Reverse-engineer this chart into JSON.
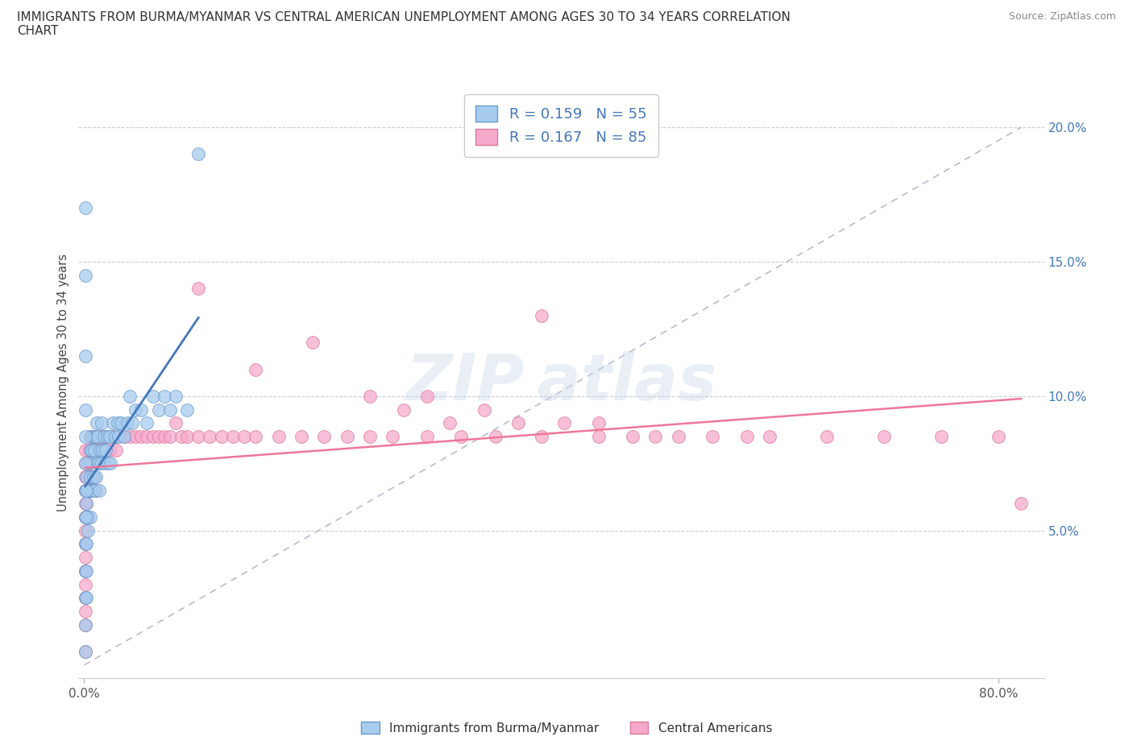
{
  "title": "IMMIGRANTS FROM BURMA/MYANMAR VS CENTRAL AMERICAN UNEMPLOYMENT AMONG AGES 30 TO 34 YEARS CORRELATION\nCHART",
  "source": "Source: ZipAtlas.com",
  "ylabel": "Unemployment Among Ages 30 to 34 years",
  "xlim": [
    -0.005,
    0.84
  ],
  "ylim": [
    -0.005,
    0.215
  ],
  "xtick_positions": [
    0.0,
    0.8
  ],
  "xticklabels": [
    "0.0%",
    "80.0%"
  ],
  "yticks_left": [],
  "yticks_right": [
    0.05,
    0.1,
    0.15,
    0.2
  ],
  "yticklabels_right": [
    "5.0%",
    "10.0%",
    "15.0%",
    "20.0%"
  ],
  "grid_yticks": [
    0.05,
    0.1,
    0.15,
    0.2
  ],
  "color_burma": "#A8CCEE",
  "color_burma_edge": "#6699CC",
  "color_central": "#F5AACC",
  "color_central_edge": "#DD7799",
  "color_trendline_burma": "#4477BB",
  "color_trendline_central": "#EE7799",
  "color_dashed_line": "#BBBBCC",
  "burma_x": [
    0.002,
    0.002,
    0.002,
    0.003,
    0.003,
    0.004,
    0.004,
    0.005,
    0.005,
    0.005,
    0.006,
    0.006,
    0.007,
    0.007,
    0.008,
    0.008,
    0.009,
    0.009,
    0.01,
    0.01,
    0.011,
    0.011,
    0.012,
    0.013,
    0.013,
    0.014,
    0.015,
    0.015,
    0.016,
    0.017,
    0.018,
    0.019,
    0.02,
    0.021,
    0.022,
    0.023,
    0.025,
    0.027,
    0.029,
    0.03,
    0.032,
    0.035,
    0.038,
    0.04,
    0.042,
    0.045,
    0.05,
    0.055,
    0.06,
    0.065,
    0.07,
    0.075,
    0.08,
    0.09,
    0.1
  ],
  "burma_y": [
    0.07,
    0.065,
    0.06,
    0.055,
    0.05,
    0.075,
    0.065,
    0.08,
    0.07,
    0.055,
    0.085,
    0.065,
    0.08,
    0.065,
    0.085,
    0.07,
    0.08,
    0.065,
    0.085,
    0.07,
    0.09,
    0.075,
    0.085,
    0.075,
    0.065,
    0.08,
    0.09,
    0.075,
    0.08,
    0.085,
    0.075,
    0.08,
    0.085,
    0.075,
    0.085,
    0.075,
    0.09,
    0.085,
    0.09,
    0.085,
    0.09,
    0.085,
    0.09,
    0.1,
    0.09,
    0.095,
    0.095,
    0.09,
    0.1,
    0.095,
    0.1,
    0.095,
    0.1,
    0.095,
    0.19
  ],
  "burma_y_extra": [
    0.17,
    0.145,
    0.115,
    0.095,
    0.085,
    0.075,
    0.065,
    0.055,
    0.045,
    0.035,
    0.025,
    0.015,
    0.005,
    0.065,
    0.055,
    0.045,
    0.035,
    0.025
  ],
  "burma_x_extra": [
    0.001,
    0.001,
    0.001,
    0.001,
    0.001,
    0.001,
    0.001,
    0.001,
    0.001,
    0.001,
    0.001,
    0.001,
    0.001,
    0.002,
    0.002,
    0.002,
    0.002,
    0.002
  ],
  "central_x": [
    0.002,
    0.002,
    0.002,
    0.003,
    0.003,
    0.003,
    0.004,
    0.004,
    0.005,
    0.005,
    0.006,
    0.006,
    0.007,
    0.007,
    0.008,
    0.008,
    0.009,
    0.009,
    0.01,
    0.01,
    0.011,
    0.012,
    0.013,
    0.014,
    0.015,
    0.016,
    0.017,
    0.018,
    0.02,
    0.022,
    0.025,
    0.028,
    0.03,
    0.035,
    0.04,
    0.045,
    0.05,
    0.055,
    0.06,
    0.065,
    0.07,
    0.075,
    0.08,
    0.085,
    0.09,
    0.1,
    0.11,
    0.12,
    0.13,
    0.14,
    0.15,
    0.17,
    0.19,
    0.21,
    0.23,
    0.25,
    0.27,
    0.3,
    0.33,
    0.36,
    0.4,
    0.45,
    0.5,
    0.55,
    0.6,
    0.65,
    0.7,
    0.75,
    0.8,
    0.82,
    0.1,
    0.2,
    0.3,
    0.35,
    0.4,
    0.45,
    0.15,
    0.25,
    0.28,
    0.32,
    0.38,
    0.42,
    0.48,
    0.52,
    0.58
  ],
  "central_y": [
    0.07,
    0.065,
    0.06,
    0.075,
    0.065,
    0.055,
    0.08,
    0.07,
    0.085,
    0.075,
    0.08,
    0.065,
    0.085,
    0.07,
    0.08,
    0.065,
    0.085,
    0.07,
    0.08,
    0.065,
    0.085,
    0.08,
    0.085,
    0.08,
    0.085,
    0.08,
    0.085,
    0.08,
    0.085,
    0.08,
    0.085,
    0.08,
    0.085,
    0.085,
    0.085,
    0.085,
    0.085,
    0.085,
    0.085,
    0.085,
    0.085,
    0.085,
    0.09,
    0.085,
    0.085,
    0.085,
    0.085,
    0.085,
    0.085,
    0.085,
    0.085,
    0.085,
    0.085,
    0.085,
    0.085,
    0.085,
    0.085,
    0.085,
    0.085,
    0.085,
    0.085,
    0.085,
    0.085,
    0.085,
    0.085,
    0.085,
    0.085,
    0.085,
    0.085,
    0.06,
    0.14,
    0.12,
    0.1,
    0.095,
    0.13,
    0.09,
    0.11,
    0.1,
    0.095,
    0.09,
    0.09,
    0.09,
    0.085,
    0.085,
    0.085
  ],
  "central_x_extra": [
    0.001,
    0.001,
    0.001,
    0.001,
    0.001,
    0.001,
    0.001,
    0.001,
    0.001,
    0.001,
    0.001,
    0.001,
    0.001,
    0.001,
    0.001
  ],
  "central_y_extra": [
    0.075,
    0.065,
    0.055,
    0.045,
    0.035,
    0.025,
    0.015,
    0.005,
    0.08,
    0.07,
    0.06,
    0.05,
    0.04,
    0.03,
    0.02
  ],
  "trendline_burma_x0": 0.001,
  "trendline_burma_x1": 0.1,
  "trendline_central_x0": 0.001,
  "trendline_central_x1": 0.82
}
